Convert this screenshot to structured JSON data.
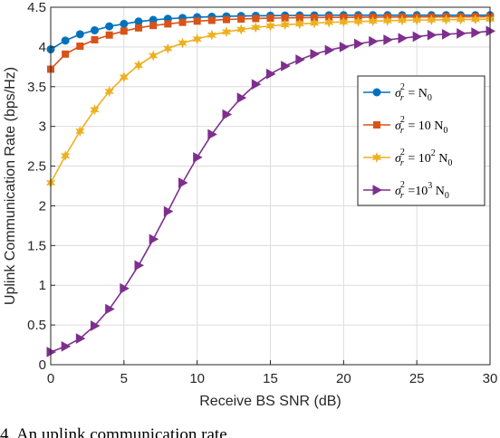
{
  "caption": "4. An uplink communication rate",
  "chart_data": {
    "type": "line",
    "title": "",
    "xlabel": "Receive BS SNR (dB)",
    "ylabel": "Uplink Communication Rate (bps/Hz)",
    "xlim": [
      0,
      30
    ],
    "ylim": [
      0,
      4.5
    ],
    "xticks": [
      0,
      5,
      10,
      15,
      20,
      25,
      30
    ],
    "yticks": [
      0,
      0.5,
      1,
      1.5,
      2,
      2.5,
      3,
      3.5,
      4,
      4.5
    ],
    "xtick_labels": [
      "0",
      "5",
      "10",
      "15",
      "20",
      "25",
      "30"
    ],
    "ytick_labels": [
      "0",
      "0.5",
      "1",
      "1.5",
      "2",
      "2.5",
      "3",
      "3.5",
      "4",
      "4.5"
    ],
    "grid": true,
    "legend_position": "right",
    "x": [
      0,
      1,
      2,
      3,
      4,
      5,
      6,
      7,
      8,
      9,
      10,
      11,
      12,
      13,
      14,
      15,
      16,
      17,
      18,
      19,
      20,
      21,
      22,
      23,
      24,
      25,
      26,
      27,
      28,
      29,
      30
    ],
    "series": [
      {
        "name": "σ_r^2 = N_0",
        "legend_main": "σ",
        "legend_sub": "r",
        "legend_sup": "2",
        "legend_rest": " = N",
        "legend_rest_sub": "0",
        "color": "#0072BD",
        "marker": "circle",
        "values": [
          3.97,
          4.08,
          4.16,
          4.21,
          4.26,
          4.29,
          4.32,
          4.34,
          4.355,
          4.365,
          4.375,
          4.38,
          4.385,
          4.39,
          4.392,
          4.394,
          4.396,
          4.397,
          4.398,
          4.399,
          4.4,
          4.4,
          4.4,
          4.4,
          4.4,
          4.4,
          4.4,
          4.4,
          4.4,
          4.4,
          4.4
        ]
      },
      {
        "name": "σ_r^2 = 10 N_0",
        "legend_main": "σ",
        "legend_sub": "r",
        "legend_sup": "2",
        "legend_rest": " = 10 N",
        "legend_rest_sub": "0",
        "color": "#D95319",
        "marker": "square",
        "values": [
          3.72,
          3.91,
          4.01,
          4.09,
          4.15,
          4.2,
          4.24,
          4.27,
          4.29,
          4.31,
          4.325,
          4.335,
          4.345,
          4.352,
          4.358,
          4.362,
          4.366,
          4.368,
          4.37,
          4.372,
          4.373,
          4.374,
          4.375,
          4.376,
          4.377,
          4.378,
          4.378,
          4.379,
          4.379,
          4.38,
          4.38
        ]
      },
      {
        "name": "σ_r^2 = 10^2 N_0",
        "legend_main": "σ",
        "legend_sub": "r",
        "legend_sup": "2",
        "legend_rest": " = 10",
        "legend_rest_sup": "2",
        "legend_rest2": " N",
        "legend_rest2_sub": "0",
        "color": "#EDB120",
        "marker": "star",
        "values": [
          2.29,
          2.63,
          2.94,
          3.21,
          3.44,
          3.62,
          3.77,
          3.89,
          3.98,
          4.05,
          4.1,
          4.15,
          4.19,
          4.22,
          4.245,
          4.265,
          4.28,
          4.29,
          4.3,
          4.31,
          4.315,
          4.32,
          4.325,
          4.33,
          4.335,
          4.338,
          4.34,
          4.343,
          4.345,
          4.347,
          4.35
        ]
      },
      {
        "name": "σ_r^2 =10^3 N_0",
        "legend_main": "σ",
        "legend_sub": "r",
        "legend_sup": "2",
        "legend_rest": " =10",
        "legend_rest_sup": "3",
        "legend_rest2": " N",
        "legend_rest2_sub": "0",
        "color": "#7E2F8E",
        "marker": "triangle-right",
        "values": [
          0.16,
          0.23,
          0.33,
          0.49,
          0.7,
          0.96,
          1.25,
          1.58,
          1.93,
          2.29,
          2.61,
          2.9,
          3.15,
          3.36,
          3.53,
          3.66,
          3.76,
          3.84,
          3.91,
          3.96,
          4.0,
          4.04,
          4.07,
          4.09,
          4.11,
          4.13,
          4.15,
          4.16,
          4.17,
          4.18,
          4.2
        ]
      }
    ]
  }
}
